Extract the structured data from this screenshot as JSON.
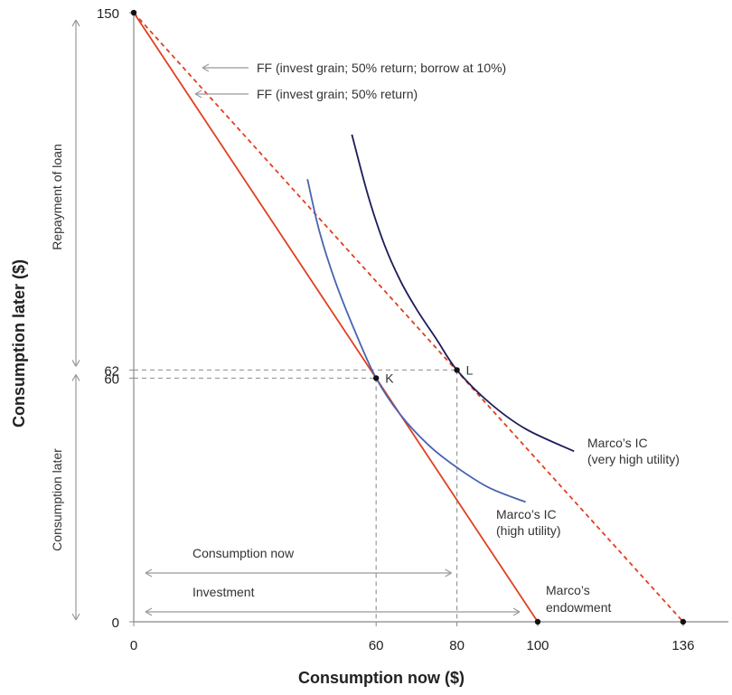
{
  "chart_data": {
    "type": "line",
    "xlabel": "Consumption now ($)",
    "ylabel": "Consumption later ($)",
    "xlim": [
      0,
      146
    ],
    "ylim": [
      0,
      150
    ],
    "x_ticks": [
      {
        "value": 0,
        "label": "0"
      },
      {
        "value": 60,
        "label": "60"
      },
      {
        "value": 80,
        "label": "80"
      },
      {
        "value": 100,
        "label": "100"
      },
      {
        "value": 136,
        "label": "136"
      }
    ],
    "y_ticks": [
      {
        "value": 0,
        "label": "0"
      },
      {
        "value": 60,
        "label": "60"
      },
      {
        "value": 62,
        "label": "62"
      },
      {
        "value": 150,
        "label": "150"
      }
    ],
    "series": [
      {
        "name": "FF (invest grain; 50% return)",
        "style": "solid",
        "color": "#e0401f",
        "points": [
          [
            0,
            150
          ],
          [
            100,
            0
          ]
        ]
      },
      {
        "name": "FF (invest grain; 50% return; borrow at 10%)",
        "style": "dashed",
        "color": "#e0401f",
        "points": [
          [
            0,
            150
          ],
          [
            136,
            0
          ]
        ]
      },
      {
        "name": "Marco's IC (high utility)",
        "style": "solid",
        "color": "#4a63b0",
        "points": [
          [
            43,
            109
          ],
          [
            46,
            96
          ],
          [
            50,
            83.5
          ],
          [
            55,
            71
          ],
          [
            60,
            60
          ],
          [
            66,
            51
          ],
          [
            73,
            43.5
          ],
          [
            80,
            38
          ],
          [
            88,
            33
          ],
          [
            97,
            29.5
          ]
        ]
      },
      {
        "name": "Marco's IC (very high utility)",
        "style": "solid",
        "color": "#1c1c5a",
        "points": [
          [
            54,
            120
          ],
          [
            58,
            105
          ],
          [
            62,
            93
          ],
          [
            66,
            84
          ],
          [
            70,
            77
          ],
          [
            75,
            69.5
          ],
          [
            80,
            62
          ],
          [
            88,
            54
          ],
          [
            97,
            47.5
          ],
          [
            109,
            42
          ]
        ]
      }
    ],
    "points": [
      {
        "label": "",
        "x": 0,
        "y": 150
      },
      {
        "label": "K",
        "x": 60,
        "y": 60
      },
      {
        "label": "L",
        "x": 80,
        "y": 62
      },
      {
        "label": "",
        "x": 100,
        "y": 0
      },
      {
        "label": "",
        "x": 136,
        "y": 0
      }
    ],
    "guides": [
      {
        "from": [
          0,
          60
        ],
        "to": [
          60,
          60
        ]
      },
      {
        "from": [
          60,
          60
        ],
        "to": [
          60,
          0
        ]
      },
      {
        "from": [
          0,
          62
        ],
        "to": [
          80,
          62
        ]
      },
      {
        "from": [
          80,
          62
        ],
        "to": [
          80,
          0
        ]
      }
    ],
    "annotations": {
      "ff_borrow": "FF (invest grain; 50% return; borrow at 10%)",
      "ff": "FF (invest grain; 50% return)",
      "ic_very_high_1": "Marco’s IC",
      "ic_very_high_2": "(very high utility)",
      "ic_high_1": "Marco’s IC",
      "ic_high_2": "(high utility)",
      "endowment_1": "Marco’s",
      "endowment_2": "endowment",
      "consumption_now": "Consumption now",
      "investment": "Investment",
      "repayment": "Repayment of loan",
      "consumption_later": "Consumption later"
    },
    "spans": {
      "consumption_now": [
        0,
        80
      ],
      "investment": [
        0,
        100
      ],
      "repayment": [
        62,
        150
      ],
      "consumption_later": [
        0,
        62
      ]
    },
    "colors": {
      "ff": "#e0401f",
      "ic_high": "#4a63b0",
      "ic_very_high": "#1c1c5a",
      "axis": "#888888",
      "guide": "#999999",
      "arrow": "#999999"
    }
  }
}
